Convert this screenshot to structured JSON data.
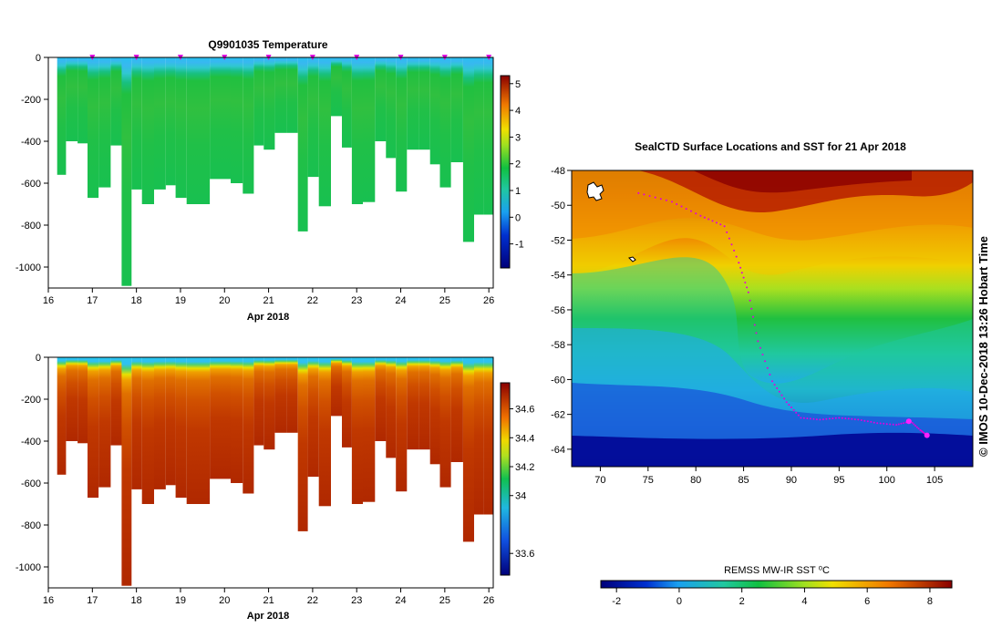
{
  "chart_data": [
    {
      "type": "heatmap",
      "id": "temperature",
      "title": "Q9901035  Temperature",
      "xlabel": "Apr 2018",
      "ylabel": "",
      "xlim": [
        16,
        26.1
      ],
      "ylim": [
        -1100,
        0
      ],
      "xticks": [
        "16",
        "17",
        "18",
        "19",
        "20",
        "21",
        "22",
        "23",
        "24",
        "25",
        "26"
      ],
      "yticks": [
        "0",
        "-200",
        "-400",
        "-600",
        "-800",
        "-1000"
      ],
      "colorbar": {
        "ticks": [
          "-1",
          "0",
          "1",
          "2",
          "3",
          "4",
          "5"
        ],
        "range": [
          -1.9,
          5.3
        ]
      },
      "surfacing_markers_x": [
        17,
        18,
        19,
        20,
        21,
        22,
        23,
        24,
        25,
        26
      ],
      "profile_times": [
        16.25,
        16.55,
        16.78,
        17.0,
        17.28,
        17.55,
        17.78,
        18.0,
        18.25,
        18.55,
        18.78,
        19.0,
        19.28,
        19.55,
        19.78,
        20.0,
        20.28,
        20.55,
        20.78,
        21.0,
        21.28,
        21.55,
        21.78,
        22.0,
        22.28,
        22.55,
        22.78,
        23.0,
        23.28,
        23.55,
        23.78,
        24.0,
        24.28,
        24.55,
        24.78,
        25.0,
        25.28,
        25.55,
        25.78,
        26.0
      ],
      "profile_max_depth": [
        560,
        400,
        410,
        670,
        620,
        420,
        1090,
        630,
        700,
        630,
        610,
        670,
        700,
        700,
        580,
        580,
        600,
        650,
        420,
        440,
        360,
        360,
        830,
        570,
        710,
        280,
        430,
        700,
        690,
        400,
        480,
        640,
        440,
        440,
        510,
        620,
        500,
        880,
        750,
        750
      ]
    },
    {
      "type": "heatmap",
      "id": "salinity",
      "title": "",
      "xlabel": "Apr 2018",
      "ylabel": "",
      "xlim": [
        16,
        26.1
      ],
      "ylim": [
        -1100,
        0
      ],
      "xticks": [
        "16",
        "17",
        "18",
        "19",
        "20",
        "21",
        "22",
        "23",
        "24",
        "25",
        "26"
      ],
      "yticks": [
        "0",
        "-200",
        "-400",
        "-600",
        "-800",
        "-1000"
      ],
      "colorbar": {
        "ticks": [
          "33.6",
          "34",
          "34.2",
          "34.4",
          "34.6"
        ],
        "range": [
          33.45,
          34.78
        ]
      }
    },
    {
      "type": "heatmap",
      "id": "sst-map",
      "title": "SealCTD Surface Locations and SST for 21 Apr 2018",
      "xlim": [
        67,
        109
      ],
      "ylim": [
        -65,
        -48
      ],
      "xticks": [
        "70",
        "75",
        "80",
        "85",
        "90",
        "95",
        "100",
        "105"
      ],
      "yticks": [
        "-48",
        "-50",
        "-52",
        "-54",
        "-56",
        "-58",
        "-60",
        "-62",
        "-64"
      ],
      "track": [
        [
          74.0,
          -49.3
        ],
        [
          77.5,
          -49.8
        ],
        [
          80.5,
          -50.6
        ],
        [
          83.0,
          -51.2
        ],
        [
          84.5,
          -53.3
        ],
        [
          85.5,
          -55.0
        ],
        [
          86.5,
          -57.8
        ],
        [
          88.0,
          -60.1
        ],
        [
          89.5,
          -61.3
        ],
        [
          91.0,
          -62.2
        ],
        [
          93.0,
          -62.3
        ],
        [
          95.0,
          -62.2
        ],
        [
          97.0,
          -62.3
        ],
        [
          99.0,
          -62.5
        ],
        [
          101.0,
          -62.6
        ],
        [
          102.5,
          -62.4
        ],
        [
          103.5,
          -62.9
        ],
        [
          104.2,
          -63.2
        ]
      ],
      "colorbar_label": "REMSS MW-IR SST ⁰C",
      "colorbar": {
        "ticks": [
          "-2",
          "0",
          "2",
          "4",
          "6",
          "8"
        ],
        "range": [
          -2.5,
          8.7
        ]
      },
      "side_label": "© IMOS 10-Dec-2018 13:26 Hobart Time"
    }
  ]
}
